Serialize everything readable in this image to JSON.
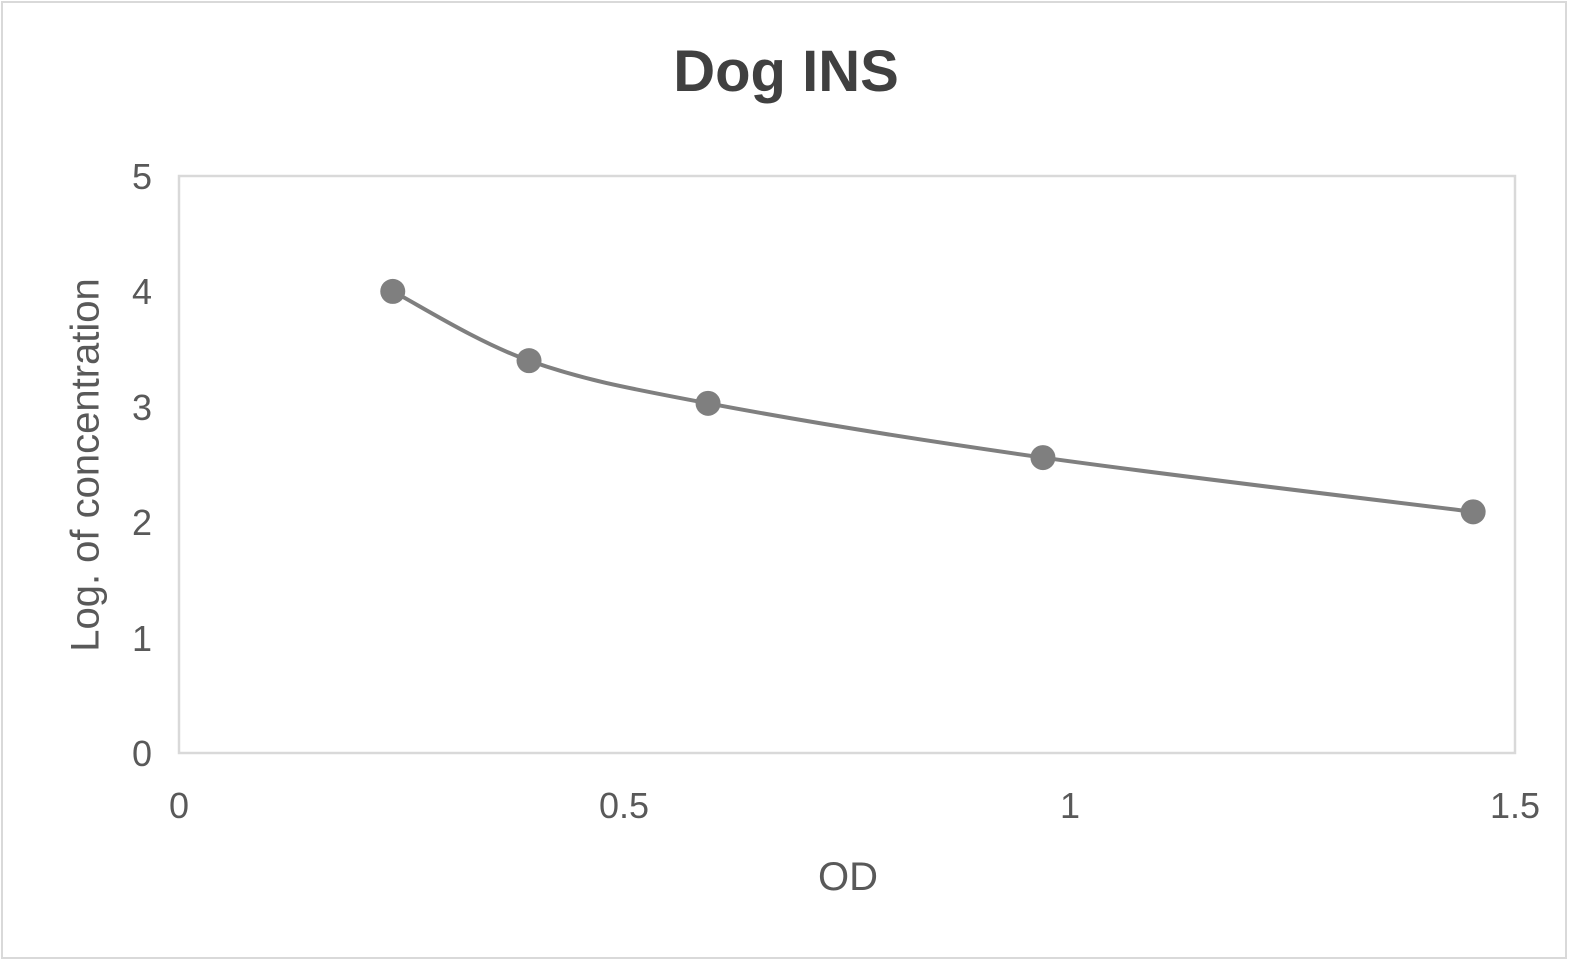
{
  "chart_data": {
    "type": "scatter",
    "title": "Dog INS",
    "xlabel": "OD",
    "ylabel": "Log. of concentration",
    "xlim": [
      0,
      1.5
    ],
    "ylim": [
      0,
      5
    ],
    "x_ticks": [
      "0",
      "0.5",
      "1",
      "1.5"
    ],
    "y_ticks": [
      "0",
      "1",
      "2",
      "3",
      "4",
      "5"
    ],
    "grid": false,
    "legend": null,
    "series": [
      {
        "name": "Dog INS",
        "style": "smooth line with markers",
        "color": "#7f7f7f",
        "x": [
          0.24,
          0.393,
          0.594,
          0.97,
          1.453
        ],
        "y": [
          4.0,
          3.4,
          3.03,
          2.56,
          2.09
        ]
      }
    ]
  },
  "colors": {
    "series": "#7f7f7f",
    "text": "#595959",
    "title": "#404040",
    "border": "#d9d9d9"
  }
}
